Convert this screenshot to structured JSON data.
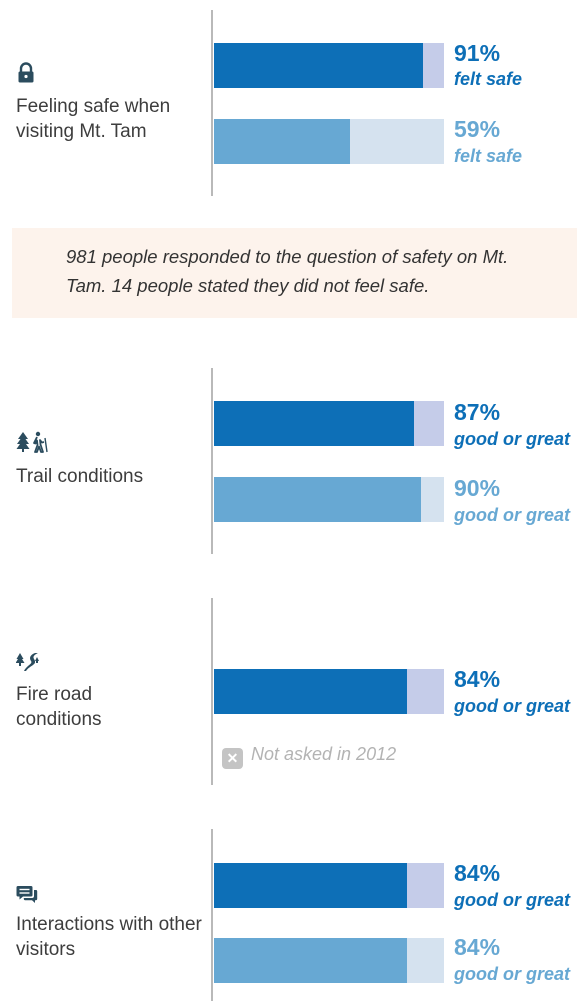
{
  "note": "981 people responded to the question of safety on Mt. Tam. 14 people stated they did not feel safe.",
  "not_asked": "Not asked in 2012",
  "colors": {
    "current": "#0d6fb7",
    "previous": "#67a8d3",
    "axis": "#b9b9b9",
    "note_bg": "#fdf3ec"
  },
  "sections": [
    {
      "icon": "lock-icon",
      "label": "Feeling safe when visiting Mt. Tam",
      "bars": [
        {
          "value": 91,
          "pct": "91%",
          "desc": "felt safe",
          "style": "dark"
        },
        {
          "value": 59,
          "pct": "59%",
          "desc": "felt safe",
          "style": "light"
        }
      ]
    },
    {
      "icon": "hiker-tree-icon",
      "label": "Trail conditions",
      "bars": [
        {
          "value": 87,
          "pct": "87%",
          "desc": "good or great",
          "style": "dark"
        },
        {
          "value": 90,
          "pct": "90%",
          "desc": "good or great",
          "style": "light"
        }
      ]
    },
    {
      "icon": "fire-road-icon",
      "label": "Fire road conditions",
      "bars": [
        {
          "value": 84,
          "pct": "84%",
          "desc": "good or great",
          "style": "dark"
        }
      ]
    },
    {
      "icon": "chat-bubbles-icon",
      "label": "Interactions with other visitors",
      "bars": [
        {
          "value": 84,
          "pct": "84%",
          "desc": "good or great",
          "style": "dark"
        },
        {
          "value": 84,
          "pct": "84%",
          "desc": "good or great",
          "style": "light"
        }
      ]
    }
  ],
  "chart_data": {
    "type": "bar",
    "categories": [
      "Feeling safe when visiting Mt. Tam",
      "Trail conditions",
      "Fire road conditions",
      "Interactions with other visitors"
    ],
    "series": [
      {
        "values": [
          91,
          87,
          84,
          84
        ]
      },
      {
        "values": [
          59,
          90,
          null,
          84
        ]
      }
    ],
    "xlim": [
      0,
      100
    ]
  }
}
